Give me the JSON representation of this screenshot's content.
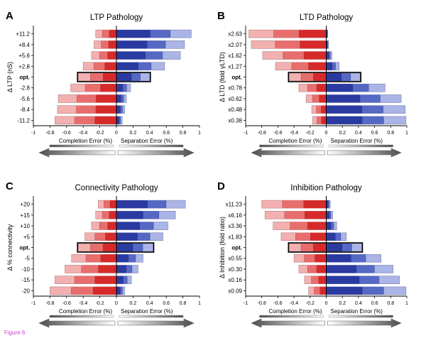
{
  "figure_label": "Figure 6",
  "colors": {
    "completion_dark": "#d62a2a",
    "completion_mid": "#e86e6e",
    "completion_light": "#f3b0b0",
    "separation_dark": "#2a3aa0",
    "separation_mid": "#5568c4",
    "separation_light": "#aab4e6",
    "arrow": "#555555"
  },
  "chart_data": [
    {
      "type": "bar",
      "panel": "A",
      "title": "LTP Pathology",
      "ylabel": "Δ LTP (nS)",
      "categories": [
        "+11.2",
        "+8.4",
        "+5.6",
        "+2.8",
        "opt.",
        "-2.8",
        "-5.6",
        "-8.4",
        "-11.2"
      ],
      "highlight": "opt.",
      "xlim": [
        -1,
        1
      ],
      "xticks": [
        "-1",
        "-0.8",
        "-0.6",
        "-0.4",
        "-0.2",
        "0",
        "0.2",
        "0.4",
        "0.6",
        "0.8",
        "1"
      ],
      "xlabel_left": "Completion Error (%)",
      "xlabel_right": "Separation Error (%)",
      "completion_error": [
        0.25,
        0.27,
        0.3,
        0.4,
        0.46,
        0.55,
        0.7,
        0.71,
        0.74
      ],
      "separation_error": [
        0.9,
        0.82,
        0.77,
        0.58,
        0.4,
        0.17,
        0.12,
        0.1,
        0.07
      ]
    },
    {
      "type": "bar",
      "panel": "B",
      "title": "LTD Pathology",
      "ylabel": "Δ LTD (fold γLTD)",
      "categories": [
        "x2.63",
        "x2.07",
        "x1.62",
        "x1.27",
        "opt.",
        "x0.78",
        "x0.62",
        "x0.48",
        "x0.38"
      ],
      "highlight": "opt.",
      "xlim": [
        -1,
        1
      ],
      "xticks": [
        "-1",
        "-0.8",
        "-0.6",
        "-0.4",
        "-0.2",
        "0",
        "0.2",
        "0.4",
        "0.6",
        "0.8",
        "1"
      ],
      "xlabel_left": "Completion Error (%)",
      "xlabel_right": "Separation Error (%)",
      "completion_error": [
        0.96,
        0.93,
        0.79,
        0.63,
        0.46,
        0.34,
        0.25,
        0.18,
        0.17
      ],
      "separation_error": [
        0.02,
        0.03,
        0.07,
        0.16,
        0.42,
        0.73,
        0.93,
        0.98,
        0.99
      ]
    },
    {
      "type": "bar",
      "panel": "C",
      "title": "Connectivity Pathology",
      "ylabel": "Δ % connectivity",
      "categories": [
        "+20",
        "+15",
        "+10",
        "+5",
        "opt.",
        "-5",
        "-10",
        "-15",
        "-20"
      ],
      "highlight": "opt.",
      "xlim": [
        -1,
        1
      ],
      "xticks": [
        "-1",
        "-0.8",
        "-0.6",
        "-0.4",
        "-0.2",
        "0",
        "0.2",
        "0.4",
        "0.6",
        "0.8",
        "1"
      ],
      "xlabel_left": "Completion Error (%)",
      "xlabel_right": "Separation Error (%)",
      "completion_error": [
        0.22,
        0.25,
        0.3,
        0.38,
        0.46,
        0.54,
        0.62,
        0.74,
        0.8
      ],
      "separation_error": [
        0.83,
        0.71,
        0.62,
        0.56,
        0.44,
        0.32,
        0.26,
        0.18,
        0.1
      ]
    },
    {
      "type": "bar",
      "panel": "D",
      "title": "Inhibition Pathology",
      "ylabel": "Δ Inhibition (fold ratio)",
      "categories": [
        "x11.23",
        "x6.16",
        "x3.36",
        "x1.83",
        "opt.",
        "x0.55",
        "x0.30",
        "x0.16",
        "x0.09"
      ],
      "highlight": "opt.",
      "xlim": [
        -1,
        1
      ],
      "xticks": [
        "-1",
        "-0.8",
        "-0.6",
        "-0.4",
        "-0.2",
        "0",
        "0.2",
        "0.4",
        "0.6",
        "0.8",
        "1"
      ],
      "xlabel_left": "Completion Error (%)",
      "xlabel_right": "Separation Error (%)",
      "completion_error": [
        0.8,
        0.76,
        0.66,
        0.56,
        0.46,
        0.4,
        0.34,
        0.27,
        0.22
      ],
      "separation_error": [
        0.05,
        0.08,
        0.13,
        0.25,
        0.44,
        0.68,
        0.83,
        0.91,
        0.99
      ]
    }
  ]
}
